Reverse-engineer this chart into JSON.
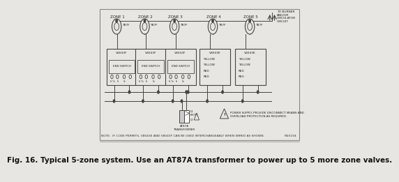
{
  "background_color": "#e8e6e2",
  "diagram_bg": "#e8e6e2",
  "title_text": "Fig. 16. Typical 5-zone system. Use an AT87A transformer to power up to 5 more zone valves.",
  "title_fontsize": 7.5,
  "note_text": "NOTE:  IF CODE PERMITS, V8043E AND V8043F CAN BE USED INTERCHANGEABLY WHEN WIRED AS SHOWN.",
  "note_right": "M15194",
  "zones": [
    "ZONE 1",
    "ZONE 2",
    "ZONE 3",
    "ZONE 4",
    "ZONE 5"
  ],
  "thermostat_label": "T87F",
  "valve_model_end": "V8043F",
  "valve_model_plain": "V8043E",
  "top_right_text": "TO BURNER\nAND/OR\nCIRCULATOR\nCIRCUIT",
  "transformer_label": "AT87A\nTRANSFORMER",
  "power_supply_text": "POWER SUPPLY. PROVIDE DISCONNECT MEANS AND\nOVERLOAD PROTECTION AS REQUIRED.",
  "line_color": "#444444",
  "box_facecolor": "#e8e6e2",
  "term_labels_end": [
    "Ta Tb",
    "Ta",
    "Tb"
  ],
  "wire_labels_plain": [
    "YELLOW",
    "YELLOW",
    "RED",
    "RED"
  ]
}
